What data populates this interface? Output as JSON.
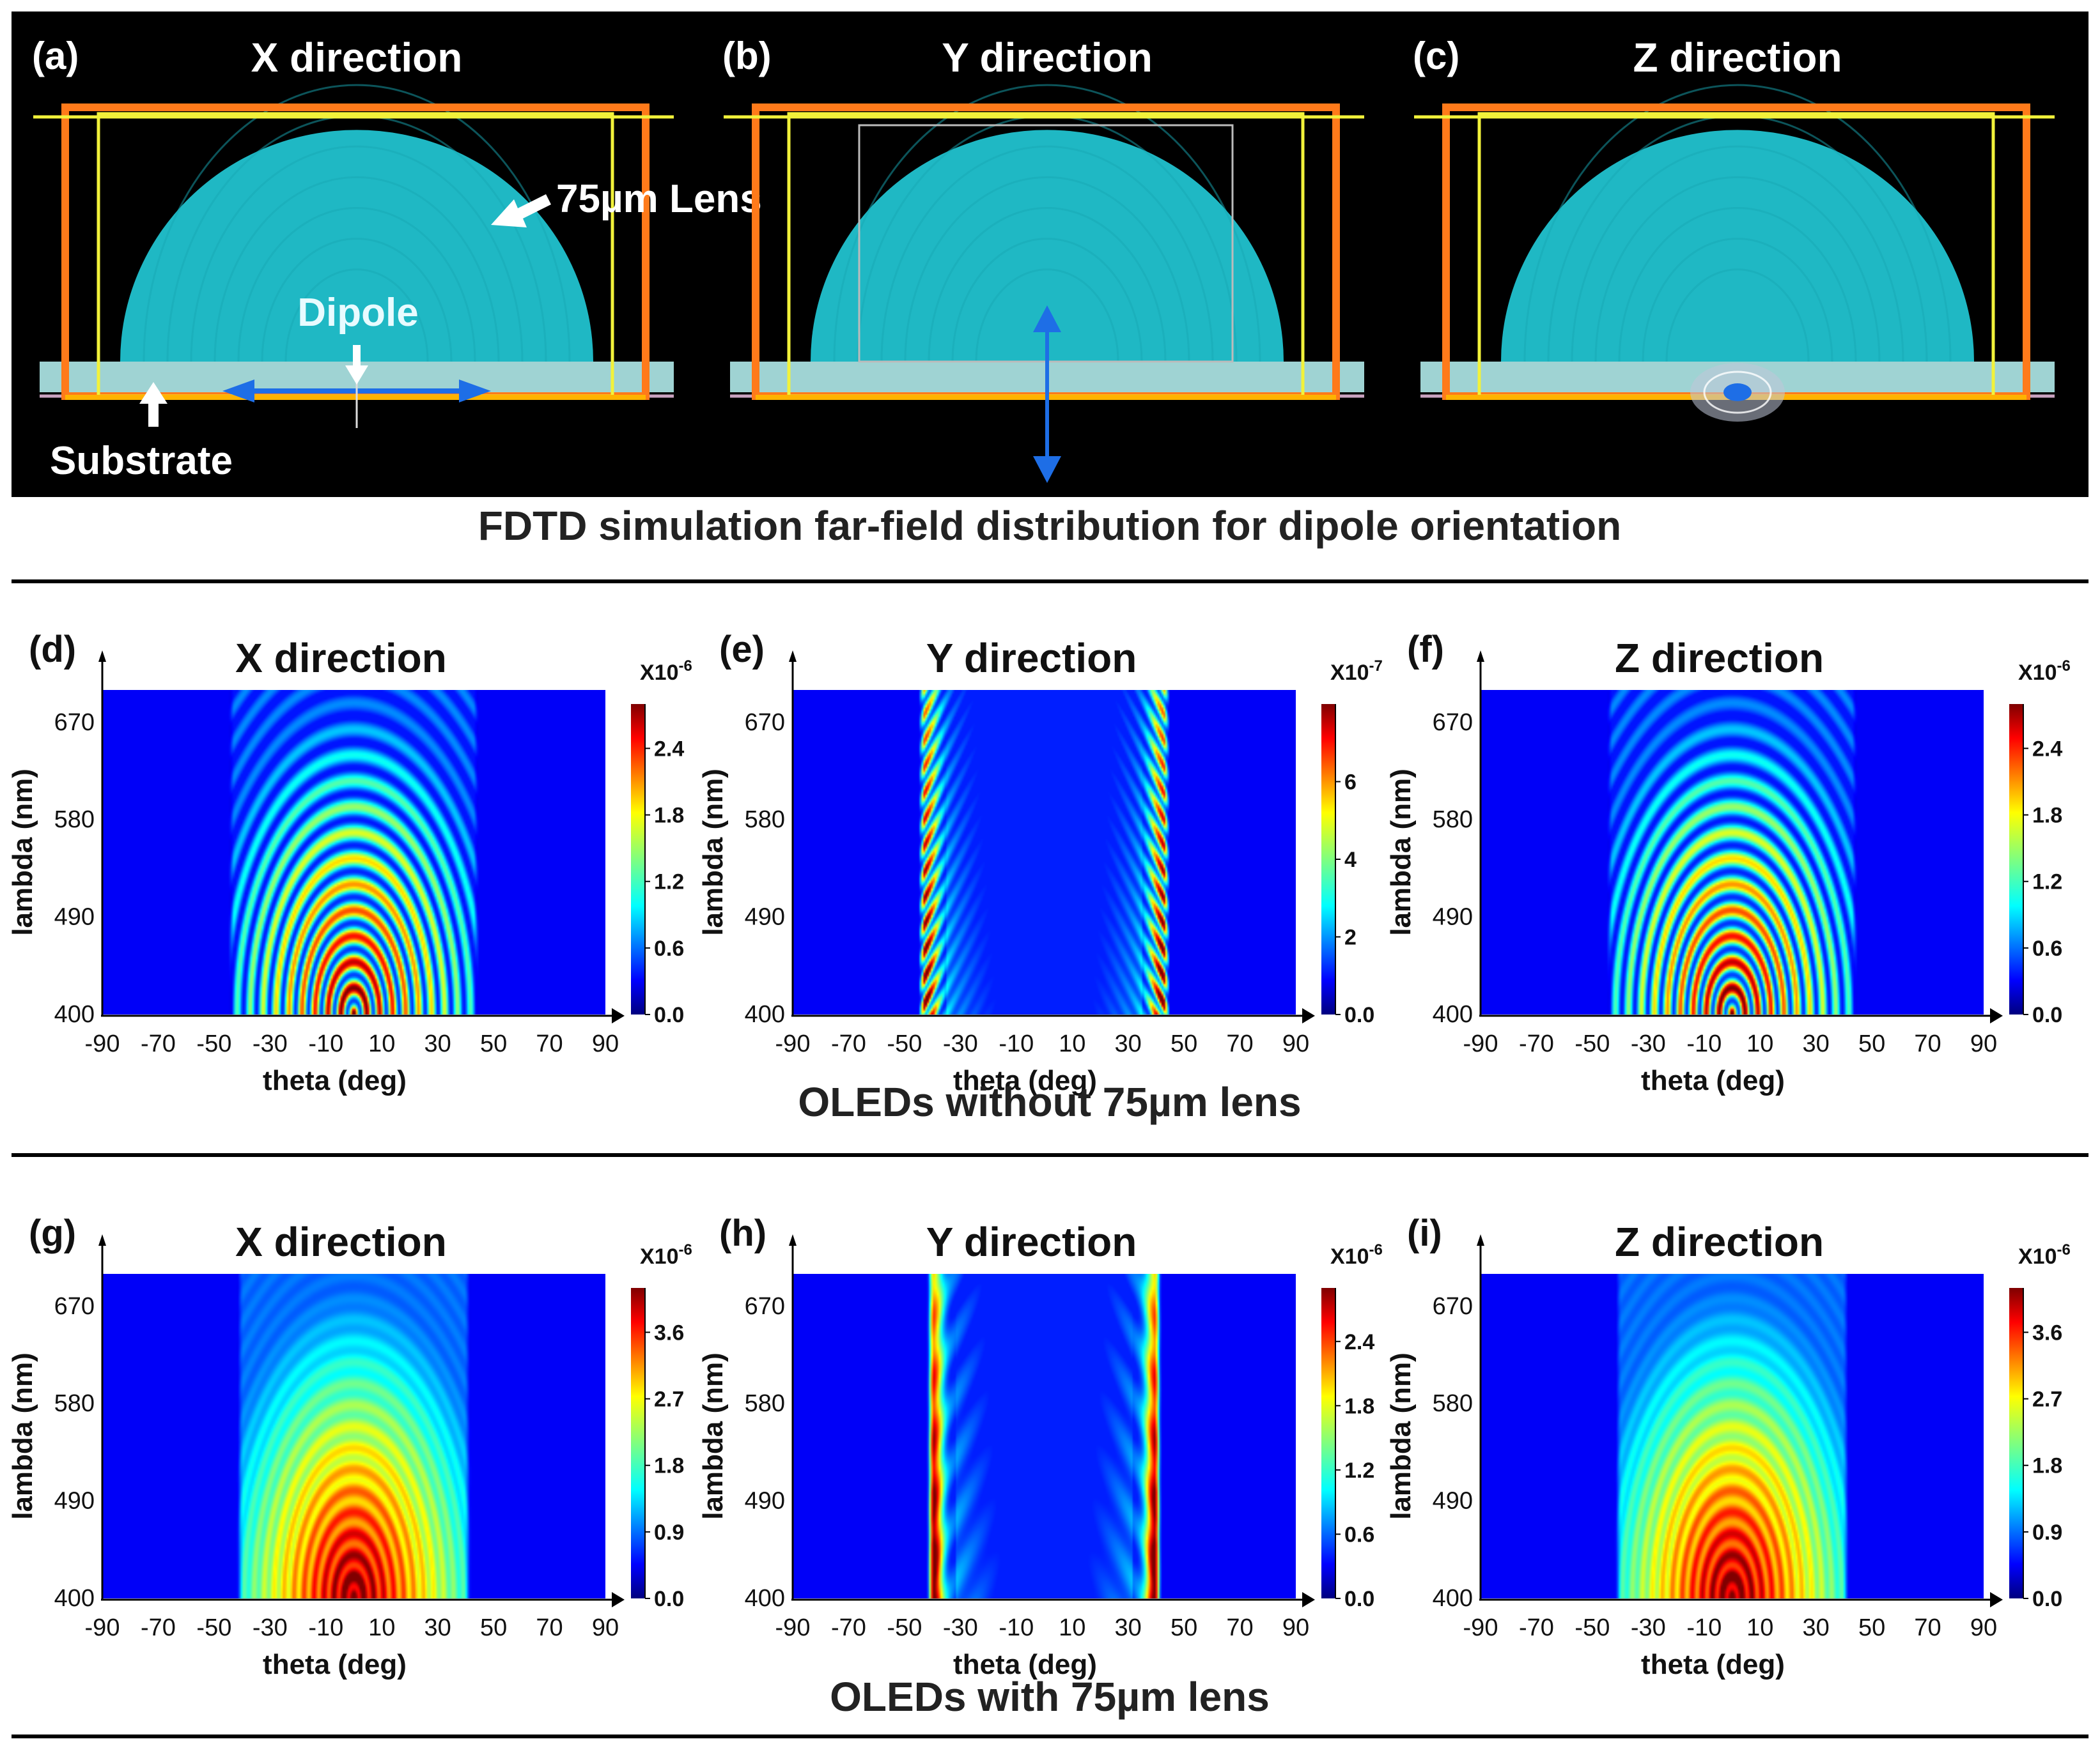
{
  "colors": {
    "panel_bg": "#000000",
    "lens": "#1fb8c4",
    "substrate": "#9fd3d3",
    "frame_orange": "#ff7a1a",
    "frame_yellow": "#f2f23a",
    "arrow_blue": "#1e6ee6",
    "plot_bg": "#00008c",
    "rule": "#000000"
  },
  "top": {
    "panels": [
      {
        "label": "(a)",
        "title": "X direction",
        "dipole": "x"
      },
      {
        "label": "(b)",
        "title": "Y direction",
        "dipole": "y"
      },
      {
        "label": "(c)",
        "title": "Z direction",
        "dipole": "z"
      }
    ],
    "lens_label": "75µm Lens",
    "dipole_label": "Dipole",
    "substrate_label": "Substrate",
    "caption": "FDTD simulation far-field distribution for dipole orientation"
  },
  "sections": [
    {
      "caption": "OLEDs without 75µm lens"
    },
    {
      "caption": "OLEDs with 75µm lens"
    }
  ],
  "chart_data": [
    {
      "type": "heatmap",
      "label": "(d)",
      "title": "X direction",
      "xlabel": "theta (deg)",
      "ylabel": "lambda (nm)",
      "xticks": [
        "-90",
        "-70",
        "-50",
        "-30",
        "-10",
        "10",
        "30",
        "50",
        "70",
        "90"
      ],
      "yticks": [
        "400",
        "490",
        "580",
        "670"
      ],
      "xlim": [
        -90,
        90
      ],
      "ylim": [
        400,
        700
      ],
      "pattern": "dome",
      "emission_edge_deg": 43,
      "lens": false,
      "colorbar": {
        "multiplier": "X10",
        "exponent": "-6",
        "ticks": [
          "0.0",
          "0.6",
          "1.2",
          "1.8",
          "2.4"
        ],
        "max": 2.8
      }
    },
    {
      "type": "heatmap",
      "label": "(e)",
      "title": "Y direction",
      "xlabel": "theta (deg)",
      "ylabel": "lambda (nm)",
      "xticks": [
        "-90",
        "-70",
        "-50",
        "-30",
        "-10",
        "10",
        "30",
        "50",
        "70",
        "90"
      ],
      "yticks": [
        "400",
        "490",
        "580",
        "670"
      ],
      "xlim": [
        -90,
        90
      ],
      "ylim": [
        400,
        700
      ],
      "pattern": "edges",
      "emission_edge_deg": 43,
      "lens": false,
      "colorbar": {
        "multiplier": "X10",
        "exponent": "-7",
        "ticks": [
          "0.0",
          "2",
          "4",
          "6"
        ],
        "max": 8
      }
    },
    {
      "type": "heatmap",
      "label": "(f)",
      "title": "Z direction",
      "xlabel": "theta (deg)",
      "ylabel": "lambda (nm)",
      "xticks": [
        "-90",
        "-70",
        "-50",
        "-30",
        "-10",
        "10",
        "30",
        "50",
        "70",
        "90"
      ],
      "yticks": [
        "400",
        "490",
        "580",
        "670"
      ],
      "xlim": [
        -90,
        90
      ],
      "ylim": [
        400,
        700
      ],
      "pattern": "dome",
      "emission_edge_deg": 43,
      "lens": false,
      "colorbar": {
        "multiplier": "X10",
        "exponent": "-6",
        "ticks": [
          "0.0",
          "0.6",
          "1.2",
          "1.8",
          "2.4"
        ],
        "max": 2.8
      }
    },
    {
      "type": "heatmap",
      "label": "(g)",
      "title": "X direction",
      "xlabel": "theta (deg)",
      "ylabel": "lambda (nm)",
      "xticks": [
        "-90",
        "-70",
        "-50",
        "-30",
        "-10",
        "10",
        "30",
        "50",
        "70",
        "90"
      ],
      "yticks": [
        "400",
        "490",
        "580",
        "670"
      ],
      "xlim": [
        -90,
        90
      ],
      "ylim": [
        400,
        700
      ],
      "pattern": "dome",
      "emission_edge_deg": 40,
      "lens": true,
      "colorbar": {
        "multiplier": "X10",
        "exponent": "-6",
        "ticks": [
          "0.0",
          "0.9",
          "1.8",
          "2.7",
          "3.6"
        ],
        "max": 4.2
      }
    },
    {
      "type": "heatmap",
      "label": "(h)",
      "title": "Y direction",
      "xlabel": "theta (deg)",
      "ylabel": "lambda (nm)",
      "xticks": [
        "-90",
        "-70",
        "-50",
        "-30",
        "-10",
        "10",
        "30",
        "50",
        "70",
        "90"
      ],
      "yticks": [
        "400",
        "490",
        "580",
        "670"
      ],
      "xlim": [
        -90,
        90
      ],
      "ylim": [
        400,
        700
      ],
      "pattern": "edges",
      "emission_edge_deg": 40,
      "lens": true,
      "colorbar": {
        "multiplier": "X10",
        "exponent": "-6",
        "ticks": [
          "0.0",
          "0.6",
          "1.2",
          "1.8",
          "2.4"
        ],
        "max": 2.9
      }
    },
    {
      "type": "heatmap",
      "label": "(i)",
      "title": "Z direction",
      "xlabel": "theta (deg)",
      "ylabel": "lambda (nm)",
      "xticks": [
        "-90",
        "-70",
        "-50",
        "-30",
        "-10",
        "10",
        "30",
        "50",
        "70",
        "90"
      ],
      "yticks": [
        "400",
        "490",
        "580",
        "670"
      ],
      "xlim": [
        -90,
        90
      ],
      "ylim": [
        400,
        700
      ],
      "pattern": "dome",
      "emission_edge_deg": 40,
      "lens": true,
      "colorbar": {
        "multiplier": "X10",
        "exponent": "-6",
        "ticks": [
          "0.0",
          "0.9",
          "1.8",
          "2.7",
          "3.6"
        ],
        "max": 4.2
      }
    }
  ]
}
